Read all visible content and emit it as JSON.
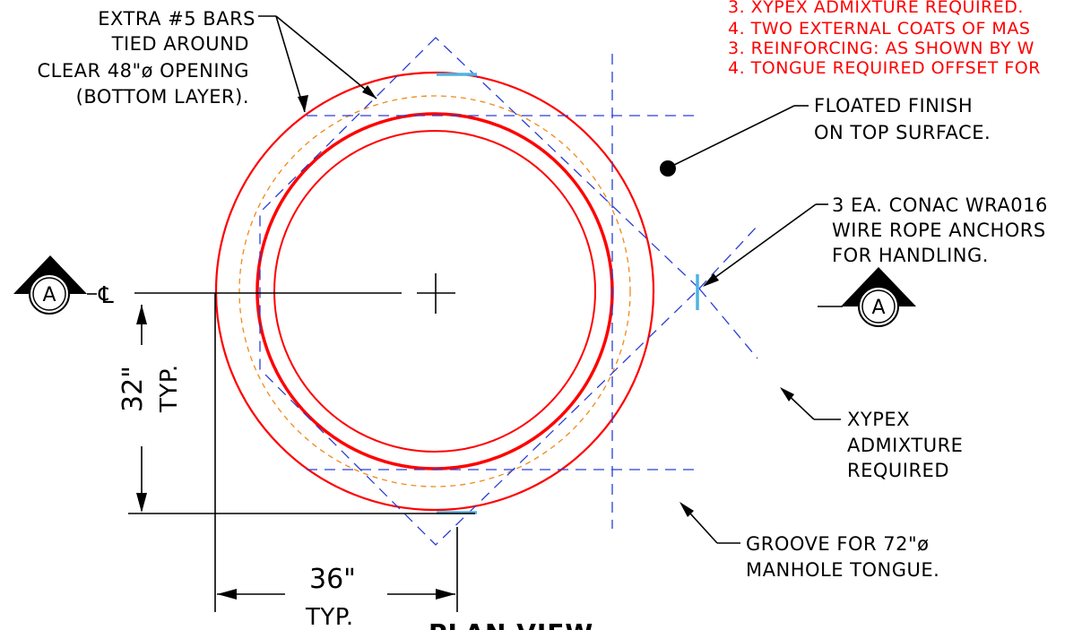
{
  "notes": {
    "line1": "3. XYPEX ADMIXTURE REQUIRED.",
    "line2": "4. TWO EXTERNAL COATS OF MAS",
    "line3": "3. REINFORCING: AS SHOWN BY W",
    "line4": "4. TONGUE REQUIRED OFFSET FOR"
  },
  "labels": {
    "extra_bars": [
      "EXTRA #5 BARS",
      "TIED AROUND",
      "CLEAR 48\"ø OPENING",
      "(BOTTOM LAYER)."
    ],
    "floated_finish": [
      "FLOATED FINISH",
      "ON TOP SURFACE."
    ],
    "anchors": [
      "3 EA. CONAC WRA016",
      "WIRE ROPE ANCHORS",
      "FOR HANDLING."
    ],
    "xypex": [
      "XYPEX",
      "ADMIXTURE",
      "REQUIRED"
    ],
    "groove": [
      "GROOVE FOR 72\"ø",
      "MANHOLE TONGUE."
    ]
  },
  "dimensions": {
    "vertical": "32\"",
    "vertical_typ": "TYP.",
    "horizontal": "36\"",
    "horizontal_typ": "TYP."
  },
  "section_marker": "A",
  "centerline_symbol": "℄",
  "title": "PLAN VIEW",
  "colors": {
    "outline": "#ff0000",
    "reinforcing": "#2a3fd6",
    "groove": "#f08a1a",
    "anchors": "#4fb3e0"
  }
}
